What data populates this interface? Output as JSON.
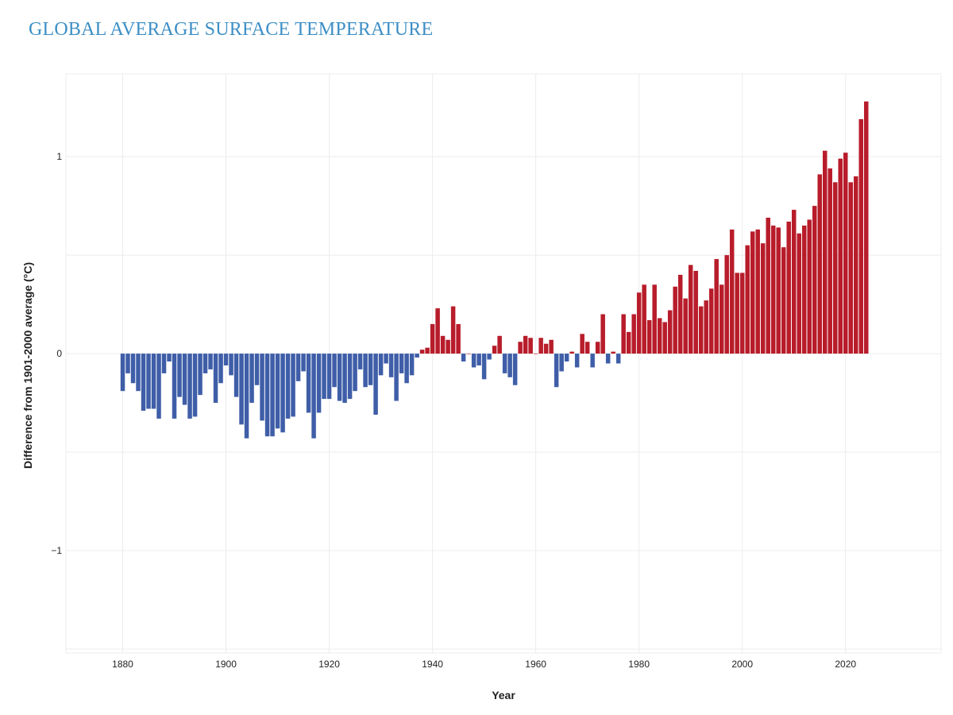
{
  "title": "GLOBAL AVERAGE SURFACE TEMPERATURE",
  "chart_data": {
    "type": "bar",
    "xlabel": "Year",
    "ylabel": "Difference from 1901-2000 average (°C)",
    "xlim": [
      1869,
      2038.5
    ],
    "ylim": [
      -1.52,
      1.42
    ],
    "x_ticks": [
      1880,
      1900,
      1920,
      1940,
      1960,
      1980,
      2000,
      2020
    ],
    "y_ticks": [
      -1,
      0,
      1
    ],
    "y_tick_labels": [
      "−1",
      "0",
      "1"
    ],
    "y_grid_step": 0.5,
    "grid": true,
    "colors": {
      "positive": "#b81c2a",
      "negative": "#3f5ea8"
    },
    "start_year": 1880,
    "values": [
      -0.19,
      -0.1,
      -0.15,
      -0.19,
      -0.29,
      -0.28,
      -0.28,
      -0.33,
      -0.1,
      -0.04,
      -0.33,
      -0.22,
      -0.26,
      -0.33,
      -0.32,
      -0.21,
      -0.1,
      -0.08,
      -0.25,
      -0.15,
      -0.06,
      -0.11,
      -0.22,
      -0.36,
      -0.43,
      -0.25,
      -0.16,
      -0.34,
      -0.42,
      -0.42,
      -0.38,
      -0.4,
      -0.33,
      -0.32,
      -0.14,
      -0.09,
      -0.3,
      -0.43,
      -0.3,
      -0.23,
      -0.23,
      -0.17,
      -0.24,
      -0.25,
      -0.23,
      -0.19,
      -0.08,
      -0.17,
      -0.16,
      -0.31,
      -0.11,
      -0.05,
      -0.12,
      -0.24,
      -0.1,
      -0.15,
      -0.11,
      -0.02,
      0.02,
      0.03,
      0.15,
      0.23,
      0.09,
      0.07,
      0.24,
      0.15,
      -0.04,
      0.0,
      -0.07,
      -0.06,
      -0.13,
      -0.03,
      0.04,
      0.09,
      -0.1,
      -0.12,
      -0.16,
      0.06,
      0.09,
      0.08,
      0.0,
      0.08,
      0.05,
      0.07,
      -0.17,
      -0.09,
      -0.04,
      0.01,
      -0.07,
      0.1,
      0.06,
      -0.07,
      0.06,
      0.2,
      -0.05,
      0.01,
      -0.05,
      0.2,
      0.11,
      0.2,
      0.31,
      0.35,
      0.17,
      0.35,
      0.18,
      0.16,
      0.22,
      0.34,
      0.4,
      0.28,
      0.45,
      0.42,
      0.24,
      0.27,
      0.33,
      0.48,
      0.35,
      0.5,
      0.63,
      0.41,
      0.41,
      0.55,
      0.62,
      0.63,
      0.56,
      0.69,
      0.65,
      0.64,
      0.54,
      0.67,
      0.73,
      0.61,
      0.65,
      0.68,
      0.75,
      0.91,
      1.03,
      0.94,
      0.87,
      0.99,
      1.02,
      0.87,
      0.9,
      1.19,
      1.28
    ]
  }
}
